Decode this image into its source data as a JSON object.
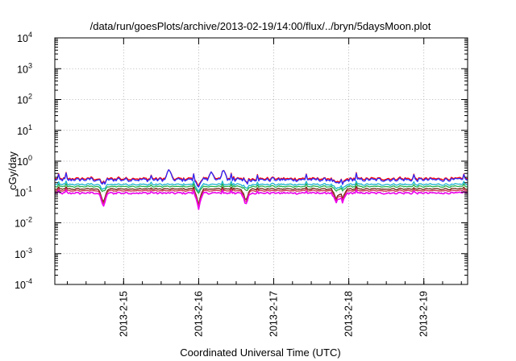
{
  "chart_data": {
    "type": "line",
    "title": "/data/run/goesPlots/archive/2013-02-19/14:00/flux/../bryn/5daysMoon.plot",
    "xlabel": "Coordinated Universal Time (UTC)",
    "ylabel": "cGy/day",
    "y_scale": "log",
    "ylim": [
      0.0001,
      10000
    ],
    "xlim": [
      "2013-02-14T02:00",
      "2013-02-19T14:00"
    ],
    "y_ticks": [
      {
        "base": "10",
        "exp": "4",
        "value": 10000
      },
      {
        "base": "10",
        "exp": "3",
        "value": 1000
      },
      {
        "base": "10",
        "exp": "2",
        "value": 100
      },
      {
        "base": "10",
        "exp": "1",
        "value": 10
      },
      {
        "base": "10",
        "exp": "0",
        "value": 1
      },
      {
        "base": "10",
        "exp": "-1",
        "value": 0.1
      },
      {
        "base": "10",
        "exp": "-2",
        "value": 0.01
      },
      {
        "base": "10",
        "exp": "-3",
        "value": 0.001
      },
      {
        "base": "10",
        "exp": "-4",
        "value": 0.0001
      }
    ],
    "x_ticks": [
      {
        "label": "2013-2-15",
        "value": "2013-02-15T00:00"
      },
      {
        "label": "2013-2-16",
        "value": "2013-02-16T00:00"
      },
      {
        "label": "2013-2-17",
        "value": "2013-02-17T00:00"
      },
      {
        "label": "2013-2-18",
        "value": "2013-02-18T00:00"
      },
      {
        "label": "2013-2-19",
        "value": "2013-02-19T00:00"
      }
    ],
    "grid": true,
    "legend": "none",
    "series": [
      {
        "color": "#ff0000",
        "level": 0.27,
        "noise": 0.09,
        "spike_gain": 0.9
      },
      {
        "color": "#2a2aff",
        "level": 0.25,
        "noise": 0.11,
        "spike_gain": 1.0
      },
      {
        "color": "#19b3cf",
        "level": 0.175,
        "noise": 0.05,
        "spike_gain": 0.5
      },
      {
        "color": "#27b04a",
        "level": 0.15,
        "noise": 0.04,
        "spike_gain": 0.4
      },
      {
        "color": "#6a2410",
        "level": 0.125,
        "noise": 0.035,
        "spike_gain": 0.3
      },
      {
        "color": "#d03050",
        "level": 0.11,
        "noise": 0.03,
        "spike_gain": 0.3
      },
      {
        "color": "#ee00ee",
        "level": 0.092,
        "noise": 0.06,
        "spike_gain": 0.35
      }
    ],
    "dips": [
      {
        "t": "2013-02-14T17:30",
        "depth": 0.3
      },
      {
        "t": "2013-02-16T00:00",
        "depth": 0.3
      },
      {
        "t": "2013-02-16T15:00",
        "depth": 0.35
      },
      {
        "t": "2013-02-17T20:00",
        "depth": 0.45
      },
      {
        "t": "2013-02-17T22:00",
        "depth": 0.5
      }
    ],
    "spikes": [
      {
        "t": "2013-02-15T14:30",
        "peak": 0.55
      },
      {
        "t": "2013-02-16T04:00",
        "peak": 0.45
      },
      {
        "t": "2013-02-16T08:00",
        "peak": 0.5
      }
    ]
  }
}
